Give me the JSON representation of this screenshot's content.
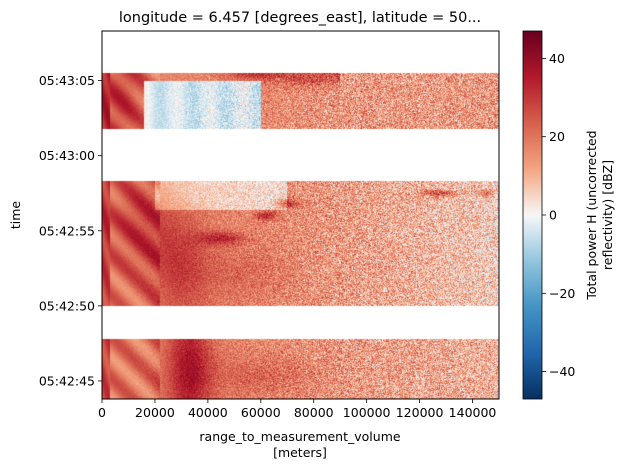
{
  "chart_data": {
    "type": "heatmap",
    "title": "longitude = 6.457 [degrees_east], latitude = 50...",
    "xlabel": "range_to_measurement_volume",
    "xlabel_unit": "[meters]",
    "ylabel": "time",
    "xlim": [
      0,
      150000
    ],
    "x_ticks": [
      "0",
      "20000",
      "40000",
      "60000",
      "80000",
      "100000",
      "120000",
      "140000"
    ],
    "y_ticks": [
      "05:42:45",
      "05:42:50",
      "05:42:55",
      "05:43:00",
      "05:43:05"
    ],
    "colorbar": {
      "label_line1": "Total power H (uncorrected",
      "label_line2": "reflectivity) [dBZ]",
      "ticks": [
        "−40",
        "−20",
        "0",
        "20",
        "40"
      ],
      "range": [
        -47,
        47
      ],
      "colormap": "RdBu_r",
      "colors": [
        "#053061",
        "#2166ac",
        "#4393c3",
        "#92c5de",
        "#f7f7f7",
        "#f4a582",
        "#d6604d",
        "#b2182b",
        "#67001f"
      ]
    },
    "sweeps": [
      {
        "time_start": "05:42:43.8",
        "time_end": "05:42:47.8"
      },
      {
        "time_start": "05:42:50",
        "time_end": "05:42:58.3"
      },
      {
        "time_start": "05:43:01.8",
        "time_end": "05:43:05.5"
      }
    ],
    "gaps": [
      {
        "time_start": "05:42:47.8",
        "time_end": "05:42:50"
      },
      {
        "time_start": "05:42:58.3",
        "time_end": "05:43:01.8"
      },
      {
        "time_start": "05:43:05.5",
        "time_end": "05:43:08.3"
      }
    ]
  }
}
